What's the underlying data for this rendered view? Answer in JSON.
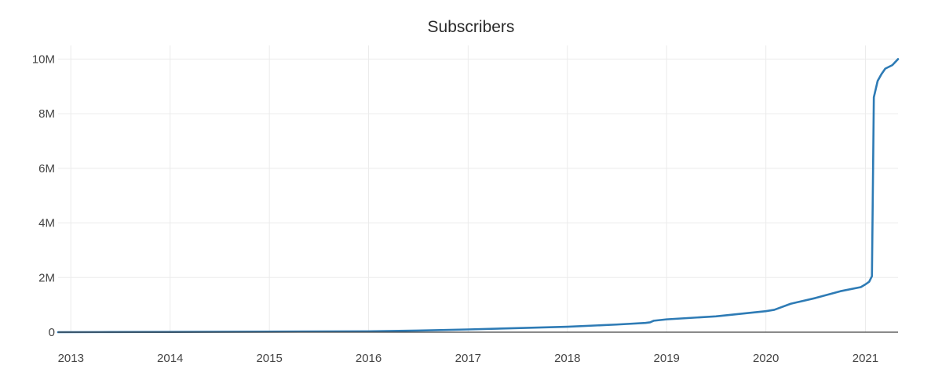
{
  "chart_data": {
    "type": "line",
    "title": "Subscribers",
    "xlabel": "",
    "ylabel": "",
    "x_ticks": [
      "2013",
      "2014",
      "2015",
      "2016",
      "2017",
      "2018",
      "2019",
      "2020",
      "2021"
    ],
    "y_ticks": [
      "0",
      "2M",
      "4M",
      "6M",
      "8M",
      "10M"
    ],
    "y_tick_values": [
      0,
      2000000,
      4000000,
      6000000,
      8000000,
      10000000
    ],
    "xlim": [
      "2012-11-15",
      "2021-05-01"
    ],
    "ylim": [
      0,
      10500000
    ],
    "grid": true,
    "series": [
      {
        "color": "#2e7bb5",
        "points": [
          [
            "2012-11-15",
            0
          ],
          [
            "2013-06-01",
            5000
          ],
          [
            "2014-01-01",
            10000
          ],
          [
            "2015-01-01",
            20000
          ],
          [
            "2016-01-01",
            30000
          ],
          [
            "2016-07-01",
            60000
          ],
          [
            "2017-01-01",
            100000
          ],
          [
            "2017-07-01",
            150000
          ],
          [
            "2018-01-01",
            200000
          ],
          [
            "2018-07-01",
            280000
          ],
          [
            "2018-10-15",
            340000
          ],
          [
            "2018-11-01",
            360000
          ],
          [
            "2018-11-15",
            420000
          ],
          [
            "2019-01-01",
            470000
          ],
          [
            "2019-07-01",
            580000
          ],
          [
            "2020-01-01",
            770000
          ],
          [
            "2020-02-01",
            820000
          ],
          [
            "2020-04-01",
            1040000
          ],
          [
            "2020-07-01",
            1250000
          ],
          [
            "2020-10-01",
            1500000
          ],
          [
            "2020-12-15",
            1650000
          ],
          [
            "2021-01-01",
            1750000
          ],
          [
            "2021-01-15",
            1850000
          ],
          [
            "2021-01-25",
            2050000
          ],
          [
            "2021-02-01",
            8600000
          ],
          [
            "2021-02-15",
            9200000
          ],
          [
            "2021-03-01",
            9450000
          ],
          [
            "2021-03-15",
            9650000
          ],
          [
            "2021-04-10",
            9780000
          ],
          [
            "2021-05-01",
            10000000
          ]
        ]
      }
    ]
  }
}
